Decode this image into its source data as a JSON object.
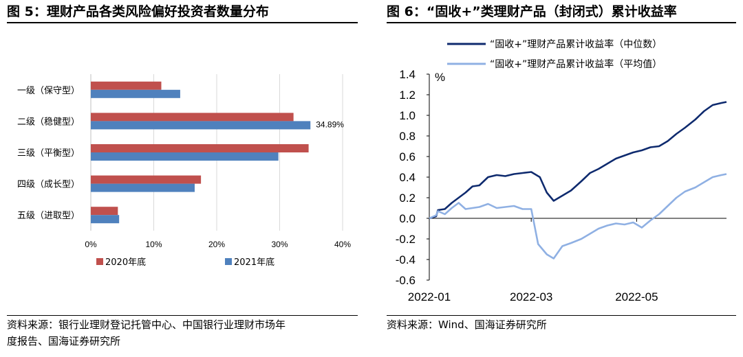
{
  "left": {
    "title": "图 5：理财产品各类风险偏好投资者数量分布",
    "source_line1": "资料来源：银行业理财登记托管中心、中国银行业理财市场年",
    "source_line2": "度报告、国海证券研究所"
  },
  "right": {
    "title": "图 6：“固收+”类理财产品（封闭式）累计收益率",
    "source": "资料来源：Wind、国海证券研究所"
  },
  "colors": {
    "red": "#c0504d",
    "blue": "#4f81bd",
    "dark_navy": "#0e2a6e",
    "light_blue": "#8fb0e3"
  },
  "chart_data": [
    {
      "type": "bar",
      "orientation": "horizontal",
      "categories": [
        "一级（保守型）",
        "二级（稳健型）",
        "三级（平衡型）",
        "四级（成长型）",
        "五级（进取型）"
      ],
      "series": [
        {
          "name": "2020年底",
          "values": [
            11.2,
            32.2,
            34.6,
            17.5,
            4.3
          ],
          "color": "#c0504d"
        },
        {
          "name": "2021年底",
          "values": [
            14.2,
            34.89,
            29.8,
            16.5,
            4.5
          ],
          "color": "#4f81bd"
        }
      ],
      "data_labels": [
        {
          "series": 1,
          "index": 1,
          "text": "34.89%"
        }
      ],
      "xlim": [
        0,
        40
      ],
      "xticks": [
        "0%",
        "10%",
        "20%",
        "30%",
        "40%"
      ],
      "grid": true,
      "legend": "bottom"
    },
    {
      "type": "line",
      "ylabel": "%",
      "ylim": [
        -0.6,
        1.4
      ],
      "yticks": [
        "1.4",
        "1.2",
        "1.0",
        "0.8",
        "0.6",
        "0.4",
        "0.2",
        "0.0",
        "-0.2",
        "-0.4",
        "-0.6"
      ],
      "xticks": [
        "2022-01",
        "2022-03",
        "2022-05"
      ],
      "legend": "top",
      "series": [
        {
          "name": "“固收+”理财产品累计收益率（中位数）",
          "color": "#0e2a6e",
          "x": [
            "2022-01-01",
            "2022-01-05",
            "2022-01-06",
            "2022-01-10",
            "2022-01-14",
            "2022-01-18",
            "2022-01-22",
            "2022-01-26",
            "2022-01-30",
            "2022-02-04",
            "2022-02-09",
            "2022-02-14",
            "2022-02-19",
            "2022-02-24",
            "2022-03-01",
            "2022-03-06",
            "2022-03-10",
            "2022-03-14",
            "2022-03-19",
            "2022-03-24",
            "2022-03-30",
            "2022-04-04",
            "2022-04-09",
            "2022-04-14",
            "2022-04-19",
            "2022-04-24",
            "2022-04-29",
            "2022-05-04",
            "2022-05-09",
            "2022-05-14",
            "2022-05-19",
            "2022-05-24",
            "2022-05-29",
            "2022-06-04",
            "2022-06-09",
            "2022-06-14",
            "2022-06-19",
            "2022-06-22"
          ],
          "y": [
            0.0,
            0.02,
            0.08,
            0.09,
            0.15,
            0.2,
            0.25,
            0.31,
            0.32,
            0.4,
            0.42,
            0.41,
            0.43,
            0.44,
            0.45,
            0.4,
            0.25,
            0.17,
            0.22,
            0.27,
            0.36,
            0.44,
            0.48,
            0.53,
            0.58,
            0.61,
            0.64,
            0.66,
            0.69,
            0.7,
            0.75,
            0.82,
            0.88,
            0.96,
            1.04,
            1.1,
            1.12,
            1.13
          ]
        },
        {
          "name": "“固收+”理财产品累计收益率（平均值）",
          "color": "#8fb0e3",
          "x": [
            "2022-01-01",
            "2022-01-05",
            "2022-01-06",
            "2022-01-10",
            "2022-01-14",
            "2022-01-18",
            "2022-01-22",
            "2022-01-26",
            "2022-01-30",
            "2022-02-04",
            "2022-02-09",
            "2022-02-14",
            "2022-02-19",
            "2022-02-24",
            "2022-03-01",
            "2022-03-05",
            "2022-03-10",
            "2022-03-14",
            "2022-03-19",
            "2022-03-24",
            "2022-03-30",
            "2022-04-04",
            "2022-04-09",
            "2022-04-14",
            "2022-04-19",
            "2022-04-24",
            "2022-04-29",
            "2022-05-04",
            "2022-05-09",
            "2022-05-14",
            "2022-05-19",
            "2022-05-24",
            "2022-05-29",
            "2022-06-04",
            "2022-06-09",
            "2022-06-14",
            "2022-06-19",
            "2022-06-22"
          ],
          "y": [
            0.0,
            0.03,
            0.07,
            0.04,
            0.1,
            0.15,
            0.09,
            0.1,
            0.11,
            0.14,
            0.1,
            0.11,
            0.12,
            0.09,
            0.09,
            -0.25,
            -0.35,
            -0.39,
            -0.27,
            -0.24,
            -0.2,
            -0.15,
            -0.1,
            -0.07,
            -0.05,
            -0.06,
            -0.04,
            -0.09,
            -0.02,
            0.04,
            0.12,
            0.2,
            0.26,
            0.3,
            0.35,
            0.4,
            0.42,
            0.43
          ]
        }
      ]
    }
  ]
}
